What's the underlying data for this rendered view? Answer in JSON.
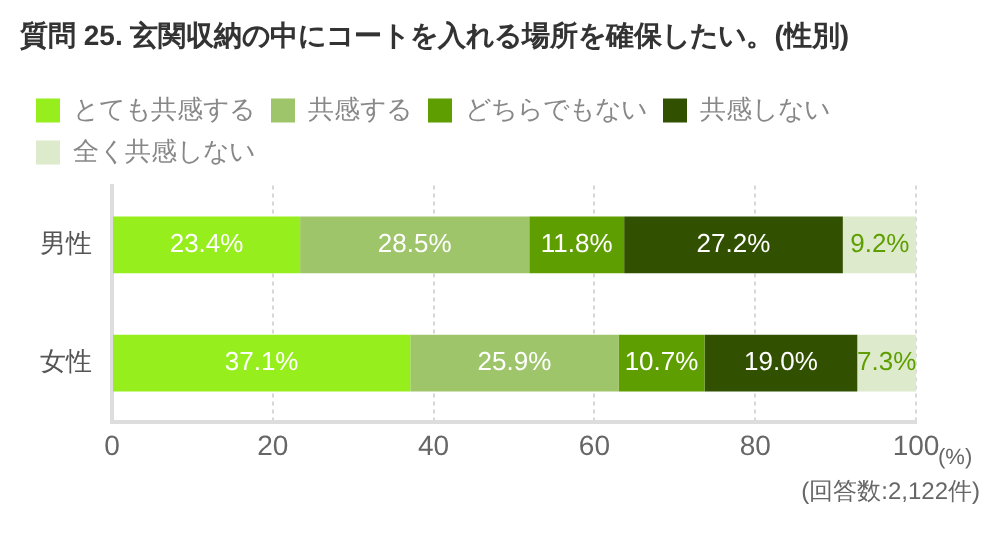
{
  "chart_data": {
    "type": "bar",
    "orientation": "horizontal",
    "stacked": true,
    "title": "質問 25. 玄関収納の中にコートを入れる場所を確保したい。(性別)",
    "xlabel": "(%)",
    "annotations": [
      "(回答数:2,122件)"
    ],
    "categories": [
      "男性",
      "女性"
    ],
    "series": [
      {
        "name": "とても共感する",
        "color": "#96ee1c",
        "values": [
          23.4,
          37.1
        ],
        "value_labels": [
          "23.4%",
          "37.1%"
        ]
      },
      {
        "name": "共感する",
        "color": "#9ec56a",
        "values": [
          28.5,
          25.9
        ],
        "value_labels": [
          "28.5%",
          "25.9%"
        ]
      },
      {
        "name": "どちらでもない",
        "color": "#5f9e00",
        "values": [
          11.8,
          10.7
        ],
        "value_labels": [
          "11.8%",
          "10.7%"
        ]
      },
      {
        "name": "共感しない",
        "color": "#315100",
        "values": [
          27.2,
          19.0
        ],
        "value_labels": [
          "27.2%",
          "19.0%"
        ]
      },
      {
        "name": "全く共感しない",
        "color": "#ddeacb",
        "values": [
          9.2,
          7.3
        ],
        "value_labels": [
          "9.2%",
          "7.3%"
        ]
      }
    ],
    "xlim": [
      0,
      100
    ],
    "xticks": [
      0,
      20,
      40,
      60,
      80,
      100
    ],
    "grid": "x",
    "legend": "top"
  }
}
